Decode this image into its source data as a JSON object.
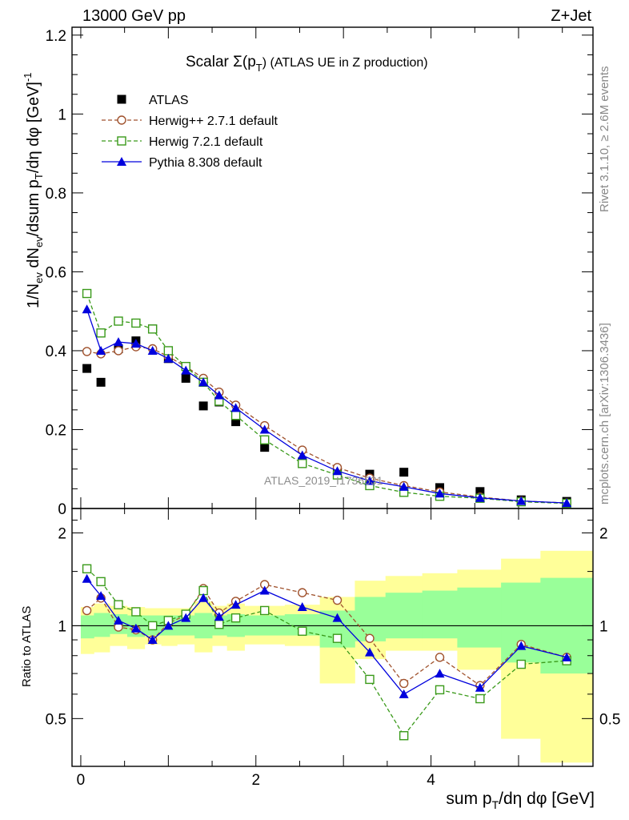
{
  "header": {
    "left": "13000 GeV pp",
    "right": "Z+Jet"
  },
  "side_labels": {
    "rivet": "Rivet 3.1.10, ≥ 2.6M events",
    "mcplots": "mcplots.cern.ch [arXiv:1306.3436]"
  },
  "watermark": "ATLAS_2019_I1736531",
  "chart_data": [
    {
      "type": "scatter",
      "title": "Scalar Σ(p_T) (ATLAS UE in Z production)",
      "title_main": "Scalar Σ(p",
      "title_sub": "T",
      "title_rest": ") (ATLAS UE in Z production)",
      "ylabel": "1/N_ev dN_ev/dsum p_T/dη dφ [GeV]^-1",
      "xlim": [
        -0.1,
        5.85
      ],
      "ylim": [
        0,
        1.22
      ],
      "yticks": [
        0,
        0.2,
        0.4,
        0.6,
        0.8,
        1,
        1.2
      ],
      "ytick_labels": [
        "0",
        "0.2",
        "0.4",
        "0.6",
        "0.8",
        "1",
        "1.2"
      ],
      "legend_position": "top-left",
      "x": [
        0.07,
        0.23,
        0.43,
        0.63,
        0.82,
        1.0,
        1.2,
        1.4,
        1.58,
        1.77,
        2.1,
        2.53,
        2.93,
        3.3,
        3.69,
        4.1,
        4.56,
        5.03,
        5.55
      ],
      "series": [
        {
          "name": "ATLAS",
          "color": "#000000",
          "marker": "filled-square",
          "line": "none",
          "values": [
            0.355,
            0.32,
            0.405,
            0.425,
            0.455,
            0.38,
            0.33,
            0.26,
            0.27,
            0.22,
            0.155,
            0.118,
            0.092,
            0.087,
            0.092,
            0.053,
            0.043,
            0.022,
            0.018
          ]
        },
        {
          "name": "Herwig++ 2.7.1 default",
          "color": "#a0522d",
          "marker": "open-circle",
          "line": "dashed",
          "values": [
            0.398,
            0.392,
            0.4,
            0.41,
            0.405,
            0.385,
            0.36,
            0.33,
            0.295,
            0.262,
            0.21,
            0.148,
            0.104,
            0.077,
            0.058,
            0.042,
            0.029,
            0.019,
            0.014
          ]
        },
        {
          "name": "Herwig 7.2.1 default",
          "color": "#3a9a1a",
          "marker": "open-square",
          "line": "dashed",
          "values": [
            0.545,
            0.445,
            0.475,
            0.47,
            0.455,
            0.4,
            0.36,
            0.32,
            0.272,
            0.236,
            0.174,
            0.114,
            0.085,
            0.058,
            0.041,
            0.031,
            0.026,
            0.017,
            0.013
          ]
        },
        {
          "name": "Pythia 8.308 default",
          "color": "#0000dd",
          "marker": "filled-triangle",
          "line": "solid",
          "values": [
            0.505,
            0.4,
            0.422,
            0.418,
            0.4,
            0.38,
            0.35,
            0.32,
            0.287,
            0.255,
            0.2,
            0.135,
            0.095,
            0.07,
            0.055,
            0.038,
            0.027,
            0.019,
            0.014
          ]
        }
      ]
    },
    {
      "type": "line",
      "ylabel": "Ratio to ATLAS",
      "xlabel": "sum p_T/dη dφ [GeV]",
      "xlim": [
        -0.1,
        5.85
      ],
      "ylim": [
        0.35,
        2.4
      ],
      "yticks": [
        0.5,
        1,
        2
      ],
      "ytick_labels": [
        "0.5",
        "1",
        "2"
      ],
      "xticks": [
        0,
        2,
        4
      ],
      "xtick_labels": [
        "0",
        "2",
        "4"
      ],
      "band_edges": [
        0,
        0.15,
        0.33,
        0.53,
        0.73,
        0.92,
        1.1,
        1.3,
        1.5,
        1.67,
        1.87,
        2.33,
        2.73,
        3.13,
        3.48,
        3.9,
        4.3,
        4.8,
        5.25,
        5.85
      ],
      "band_outer": {
        "color": "#ffff99",
        "lower": [
          0.81,
          0.82,
          0.86,
          0.84,
          0.87,
          0.86,
          0.87,
          0.82,
          0.86,
          0.83,
          0.87,
          0.86,
          0.65,
          0.78,
          0.83,
          0.83,
          0.72,
          0.43,
          0.36
        ],
        "upper": [
          1.15,
          1.18,
          1.16,
          1.15,
          1.14,
          1.14,
          1.14,
          1.2,
          1.16,
          1.18,
          1.16,
          1.17,
          1.24,
          1.4,
          1.45,
          1.48,
          1.52,
          1.65,
          1.75
        ]
      },
      "band_inner": {
        "color": "#99ff99",
        "lower": [
          0.91,
          0.92,
          0.94,
          0.92,
          0.93,
          0.93,
          0.93,
          0.91,
          0.93,
          0.92,
          0.93,
          0.93,
          0.85,
          0.89,
          0.91,
          0.91,
          0.85,
          0.76,
          0.7
        ],
        "upper": [
          1.08,
          1.1,
          1.09,
          1.08,
          1.08,
          1.08,
          1.08,
          1.1,
          1.08,
          1.09,
          1.08,
          1.09,
          1.12,
          1.24,
          1.28,
          1.3,
          1.33,
          1.38,
          1.43
        ]
      },
      "x": [
        0.07,
        0.23,
        0.43,
        0.63,
        0.82,
        1.0,
        1.2,
        1.4,
        1.58,
        1.77,
        2.1,
        2.53,
        2.93,
        3.3,
        3.69,
        4.1,
        4.56,
        5.03,
        5.55
      ],
      "series": [
        {
          "name": "Herwig++ 2.7.1 default",
          "color": "#a0522d",
          "marker": "open-circle",
          "line": "dashed",
          "values": [
            1.12,
            1.23,
            0.99,
            0.97,
            0.9,
            1.02,
            1.08,
            1.32,
            1.1,
            1.2,
            1.36,
            1.28,
            1.21,
            0.91,
            0.65,
            0.79,
            0.64,
            0.87,
            0.79
          ]
        },
        {
          "name": "Herwig 7.2.1 default",
          "color": "#3a9a1a",
          "marker": "open-square",
          "line": "dashed",
          "values": [
            1.53,
            1.39,
            1.17,
            1.11,
            1.0,
            1.04,
            1.09,
            1.3,
            1.01,
            1.06,
            1.12,
            0.96,
            0.91,
            0.67,
            0.44,
            0.62,
            0.58,
            0.75,
            0.77
          ]
        },
        {
          "name": "Pythia 8.308 default",
          "color": "#0000dd",
          "marker": "filled-triangle",
          "line": "solid",
          "values": [
            1.42,
            1.25,
            1.04,
            0.98,
            0.9,
            1.0,
            1.06,
            1.23,
            1.07,
            1.17,
            1.3,
            1.15,
            1.06,
            0.82,
            0.6,
            0.7,
            0.63,
            0.86,
            0.79
          ]
        }
      ]
    }
  ]
}
